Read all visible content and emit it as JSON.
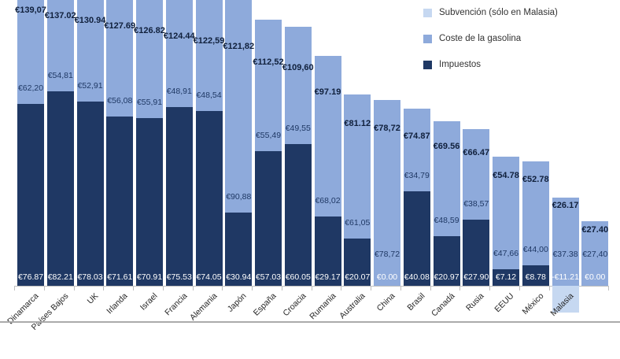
{
  "legend": {
    "items": [
      {
        "label": "Subvención (sólo en Malasia)",
        "color": "#C6D8F1"
      },
      {
        "label": "Coste de la gasolina",
        "color": "#8EAADB"
      },
      {
        "label": "Impuestos",
        "color": "#1F3864"
      }
    ]
  },
  "chart_data": {
    "type": "bar",
    "stacked": true,
    "title": "",
    "xlabel": "",
    "ylabel": "",
    "currency": "EUR",
    "grid": false,
    "legend_position": "top-right",
    "categories": [
      "Dinamarca",
      "Países Bajos",
      "UK",
      "Irlanda",
      "Israel",
      "Francia",
      "Alemania",
      "Japón",
      "España",
      "Croacia",
      "Rumania",
      "Australia",
      "China",
      "Brasil",
      "Canadá",
      "Rusia",
      "EEUU",
      "México",
      "Malasia",
      ""
    ],
    "series": [
      {
        "name": "Impuestos",
        "color": "#1F3864",
        "values": [
          76.87,
          82.21,
          78.03,
          71.61,
          70.91,
          75.53,
          74.05,
          30.94,
          57.03,
          60.05,
          29.17,
          20.07,
          0.0,
          40.08,
          20.97,
          27.9,
          7.12,
          8.78,
          0.0,
          0.0
        ]
      },
      {
        "name": "Coste de la gasolina",
        "color": "#8EAADB",
        "values": [
          62.2,
          54.81,
          52.91,
          56.08,
          55.91,
          48.91,
          48.54,
          90.88,
          55.49,
          49.55,
          68.02,
          61.05,
          78.72,
          34.79,
          48.59,
          38.57,
          47.66,
          44.0,
          37.38,
          27.4
        ]
      },
      {
        "name": "Subvención (sólo en Malasia)",
        "color": "#C6D8F1",
        "values": [
          0,
          0,
          0,
          0,
          0,
          0,
          0,
          0,
          0,
          0,
          0,
          0,
          0,
          0,
          0,
          0,
          0,
          0,
          -11.21,
          0
        ]
      }
    ],
    "totals": [
      139.07,
      137.02,
      130.94,
      127.69,
      126.82,
      124.44,
      122.59,
      121.82,
      112.52,
      109.6,
      97.19,
      81.12,
      78.72,
      74.87,
      69.56,
      66.47,
      54.78,
      52.78,
      26.17,
      27.4
    ],
    "data_labels": {
      "total": [
        "€139,07",
        "€137.02",
        "€130.94",
        "€127.69",
        "€126.82",
        "€124.44",
        "€122,59",
        "€121,82",
        "€112,52",
        "€109,60",
        "€97.19",
        "€81.12",
        "€78,72",
        "€74.87",
        "€69.56",
        "€66.47",
        "€54.78",
        "€52.78",
        "€26.17",
        "€27.40"
      ],
      "gas": [
        "€62,20",
        "€54,81",
        "€52,91",
        "€56,08",
        "€55,91",
        "€48,91",
        "€48,54",
        "€90,88",
        "€55,49",
        "€49,55",
        "€68,02",
        "€61,05",
        "€78,72",
        "€34,79",
        "€48,59",
        "€38,57",
        "€47,66",
        "€44,00",
        "€37.38",
        "€27,40"
      ],
      "base": [
        "€76.87",
        "€82.21",
        "€78.03",
        "€71.61",
        "€70.91",
        "€75.53",
        "€74.05",
        "€30.94",
        "€57.03",
        "€60.05",
        "€29.17",
        "€20.07",
        "€0.00",
        "€40.08",
        "€20.97",
        "€27.90",
        "€7.12",
        "€8.78",
        "-€11.21",
        "€0.00"
      ]
    }
  }
}
